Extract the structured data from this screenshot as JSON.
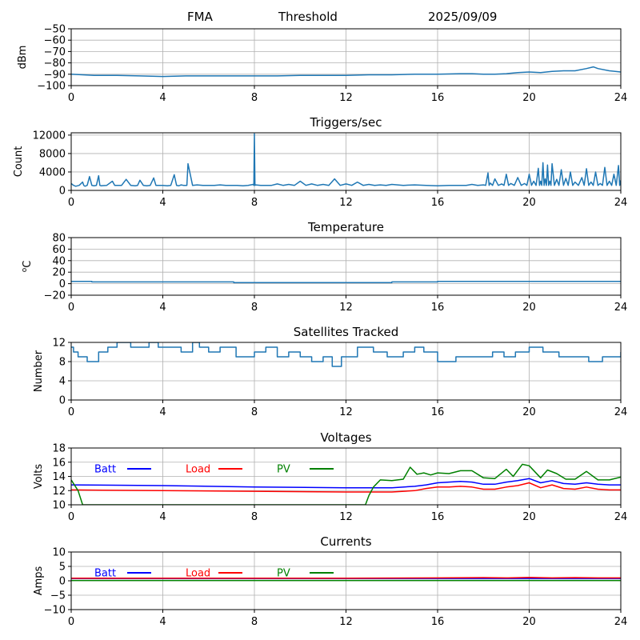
{
  "header": {
    "station": "FMA",
    "mode": "Threshold",
    "date": "2025/09/09"
  },
  "colors": {
    "series_default": "#1f77b4",
    "batt": "#0000ff",
    "load": "#ff0000",
    "pv": "#008000",
    "grid": "#b0b0b0"
  },
  "chart_data": [
    {
      "type": "line",
      "title": "",
      "xlabel": "",
      "ylabel": "dBm",
      "xlim": [
        0,
        24
      ],
      "ylim": [
        -100,
        -50
      ],
      "xticks": [
        0,
        4,
        8,
        12,
        16,
        20,
        24
      ],
      "yticks": [
        -100,
        -90,
        -80,
        -70,
        -60,
        -50
      ],
      "ytick_labels": [
        "−100",
        "−90",
        "−80",
        "−70",
        "−60",
        "−50"
      ],
      "grid": true,
      "series": [
        {
          "color": "#1f77b4",
          "x": [
            0,
            0.5,
            1,
            1.5,
            2,
            3,
            4,
            5,
            6,
            7,
            8,
            9,
            10,
            11,
            12,
            13,
            14,
            15,
            16,
            17,
            17.5,
            18,
            18.5,
            19,
            19.5,
            20,
            20.5,
            21,
            21.5,
            22,
            22.5,
            22.8,
            23,
            23.5,
            24
          ],
          "y": [
            -90,
            -90.5,
            -91,
            -91,
            -91,
            -91.5,
            -92,
            -91.5,
            -91.5,
            -91.5,
            -91.5,
            -91.5,
            -91,
            -91,
            -91,
            -90.5,
            -90.5,
            -90,
            -90,
            -89.5,
            -89.5,
            -90,
            -90,
            -89.5,
            -88.5,
            -88,
            -88.5,
            -87.5,
            -87,
            -87,
            -85,
            -83.5,
            -85,
            -87,
            -88
          ]
        }
      ]
    },
    {
      "type": "line",
      "title": "Triggers/sec",
      "xlabel": "",
      "ylabel": "Count",
      "xlim": [
        0,
        24
      ],
      "ylim": [
        0,
        12500
      ],
      "xticks": [
        0,
        4,
        8,
        12,
        16,
        20,
        24
      ],
      "yticks": [
        0,
        4000,
        8000,
        12000
      ],
      "ytick_labels": [
        "0",
        "4000",
        "8000",
        "12000"
      ],
      "grid": true,
      "series": [
        {
          "color": "#1f77b4",
          "baseline": 1100,
          "x": [
            0,
            0.2,
            0.5,
            0.6,
            0.8,
            1.0,
            1.2,
            1.3,
            1.8,
            2.0,
            2.4,
            2.8,
            3.0,
            3.3,
            3.6,
            3.8,
            4.2,
            4.5,
            4.7,
            4.8,
            5.0,
            5.1,
            5.5,
            6.0,
            6.5,
            7.0,
            7.5,
            7.95,
            8.0,
            8.05,
            8.5,
            9.0,
            9.5,
            10.0,
            10.5,
            11.0,
            11.5,
            12.0,
            12.5,
            13.0,
            13.5,
            14.0,
            15.0,
            16.0,
            17.0,
            17.5,
            18.0,
            18.2,
            18.3,
            18.5,
            18.8,
            19.0,
            19.2,
            19.5,
            19.8,
            20.0,
            20.2,
            20.4,
            20.5,
            20.6,
            20.7,
            20.8,
            20.9,
            21.0,
            21.2,
            21.4,
            21.6,
            21.8,
            22.0,
            22.3,
            22.5,
            22.7,
            22.9,
            23.1,
            23.3,
            23.5,
            23.7,
            23.9,
            24.0
          ],
          "y": [
            1500,
            900,
            1800,
            900,
            3000,
            1000,
            3200,
            1000,
            2000,
            1100,
            2400,
            1000,
            2200,
            1000,
            2700,
            1100,
            1000,
            3400,
            1000,
            1200,
            1100,
            5800,
            1200,
            1100,
            1200,
            1100,
            1000,
            1300,
            12300,
            1200,
            1100,
            1400,
            1300,
            2000,
            1400,
            1300,
            2500,
            1400,
            1800,
            1300,
            1200,
            1300,
            1200,
            1000,
            1100,
            1300,
            1200,
            3800,
            1600,
            2500,
            1400,
            3500,
            1500,
            2800,
            1500,
            3500,
            2000,
            4800,
            2000,
            6000,
            2500,
            5500,
            2000,
            5800,
            2400,
            4500,
            2600,
            4000,
            1800,
            2800,
            4700,
            1800,
            4000,
            1500,
            5000,
            2000,
            3500,
            5400,
            2200
          ]
        }
      ]
    },
    {
      "type": "line",
      "title": "Temperature",
      "xlabel": "",
      "ylabel": "oC",
      "xlim": [
        0,
        24
      ],
      "ylim": [
        -20,
        80
      ],
      "xticks": [
        0,
        4,
        8,
        12,
        16,
        20,
        24
      ],
      "yticks": [
        -20,
        0,
        20,
        40,
        60,
        80
      ],
      "ytick_labels": [
        "−20",
        "0",
        "20",
        "40",
        "60",
        "80"
      ],
      "grid": true,
      "series": [
        {
          "color": "#1f77b4",
          "x": [
            0,
            0.9,
            0.9,
            7.1,
            7.1,
            14,
            14,
            16,
            16,
            24
          ],
          "y": [
            4,
            4,
            3,
            3,
            2,
            2,
            3,
            3,
            4,
            4
          ]
        }
      ]
    },
    {
      "type": "line",
      "title": "Satellites Tracked",
      "xlabel": "",
      "ylabel": "Number",
      "xlim": [
        0,
        24
      ],
      "ylim": [
        0,
        12
      ],
      "xticks": [
        0,
        4,
        8,
        12,
        16,
        20,
        24
      ],
      "yticks": [
        0,
        4,
        8,
        12
      ],
      "ytick_labels": [
        "0",
        "4",
        "8",
        "12"
      ],
      "grid": true,
      "step": true,
      "series": [
        {
          "color": "#1f77b4",
          "x": [
            0,
            0.1,
            0.3,
            0.7,
            1.2,
            1.6,
            2.0,
            2.6,
            3.4,
            3.8,
            4.2,
            4.8,
            5.3,
            5.6,
            6.0,
            6.5,
            7.2,
            8.0,
            8.5,
            9.0,
            9.5,
            10.0,
            10.5,
            11.0,
            11.4,
            11.8,
            12.5,
            13.2,
            13.8,
            14.5,
            15.0,
            15.4,
            16.0,
            16.8,
            17.8,
            18.4,
            18.9,
            19.4,
            20.0,
            20.6,
            21.3,
            22.1,
            22.6,
            23.2,
            23.9,
            24.0
          ],
          "y": [
            11,
            10,
            9,
            8,
            10,
            11,
            12,
            11,
            12,
            11,
            11,
            10,
            12,
            11,
            10,
            11,
            9,
            10,
            11,
            9,
            10,
            9,
            8,
            9,
            7,
            9,
            11,
            10,
            9,
            10,
            11,
            10,
            8,
            9,
            9,
            10,
            9,
            10,
            11,
            10,
            9,
            9,
            8,
            9,
            9,
            10
          ]
        }
      ]
    },
    {
      "type": "line",
      "title": "Voltages",
      "xlabel": "",
      "ylabel": "Volts",
      "xlim": [
        0,
        24
      ],
      "ylim": [
        10,
        18
      ],
      "xticks": [
        0,
        4,
        8,
        12,
        16,
        20,
        24
      ],
      "yticks": [
        10,
        12,
        14,
        16,
        18
      ],
      "ytick_labels": [
        "10",
        "12",
        "14",
        "16",
        "18"
      ],
      "grid": true,
      "legend": "top-left",
      "series": [
        {
          "name": "Batt",
          "color": "#0000ff",
          "x": [
            0,
            4,
            8,
            12,
            14,
            15,
            15.5,
            16,
            16.5,
            17,
            17.5,
            18,
            18.5,
            19,
            19.5,
            20,
            20.5,
            21,
            21.5,
            22,
            22.5,
            23,
            23.5,
            24
          ],
          "y": [
            12.8,
            12.7,
            12.5,
            12.4,
            12.4,
            12.6,
            12.8,
            13.1,
            13.2,
            13.3,
            13.2,
            12.9,
            12.9,
            13.2,
            13.4,
            13.7,
            13.1,
            13.4,
            13.0,
            12.9,
            13.1,
            12.9,
            12.8,
            12.8
          ]
        },
        {
          "name": "Load",
          "color": "#ff0000",
          "x": [
            0,
            4,
            8,
            12,
            14,
            15,
            15.5,
            16,
            16.5,
            17,
            17.5,
            18,
            18.5,
            19,
            19.5,
            20,
            20.5,
            21,
            21.5,
            22,
            22.5,
            23,
            23.5,
            24
          ],
          "y": [
            12.1,
            12.0,
            11.9,
            11.8,
            11.8,
            12.0,
            12.3,
            12.5,
            12.5,
            12.6,
            12.5,
            12.2,
            12.2,
            12.5,
            12.7,
            13.1,
            12.4,
            12.8,
            12.3,
            12.2,
            12.5,
            12.2,
            12.1,
            12.1
          ]
        },
        {
          "name": "PV",
          "color": "#008000",
          "x": [
            0,
            0.3,
            0.5,
            12.85,
            13.0,
            13.2,
            13.5,
            14.0,
            14.5,
            14.8,
            15.1,
            15.4,
            15.7,
            16.0,
            16.5,
            17.0,
            17.5,
            18.0,
            18.5,
            19.0,
            19.3,
            19.7,
            20.0,
            20.5,
            20.8,
            21.2,
            21.6,
            22.0,
            22.5,
            23.0,
            23.5,
            24
          ],
          "y": [
            13.5,
            12.0,
            10.0,
            10.0,
            11.3,
            12.5,
            13.5,
            13.4,
            13.6,
            15.3,
            14.3,
            14.5,
            14.2,
            14.5,
            14.4,
            14.8,
            14.8,
            13.8,
            13.7,
            15.0,
            14.0,
            15.7,
            15.5,
            13.8,
            14.9,
            14.4,
            13.6,
            13.6,
            14.7,
            13.5,
            13.5,
            13.9
          ]
        }
      ]
    },
    {
      "type": "line",
      "title": "Currents",
      "xlabel": "",
      "ylabel": "Amps",
      "xlim": [
        0,
        24
      ],
      "ylim": [
        -10,
        10
      ],
      "xticks": [
        0,
        4,
        8,
        12,
        16,
        20,
        24
      ],
      "yticks": [
        -10,
        -5,
        0,
        5,
        10
      ],
      "ytick_labels": [
        "−10",
        "−5",
        "0",
        "5",
        "10"
      ],
      "grid": true,
      "legend": "top-left",
      "series": [
        {
          "name": "Batt",
          "color": "#0000ff",
          "x": [
            0,
            24
          ],
          "y": [
            0.8,
            0.8
          ]
        },
        {
          "name": "Load",
          "color": "#ff0000",
          "x": [
            0,
            4,
            8,
            12,
            16,
            18,
            19,
            20,
            21,
            22,
            23,
            24
          ],
          "y": [
            0.9,
            0.9,
            0.9,
            0.9,
            1.0,
            1.1,
            1.0,
            1.2,
            1.0,
            1.1,
            1.0,
            1.0
          ]
        },
        {
          "name": "PV",
          "color": "#008000",
          "x": [
            0,
            24
          ],
          "y": [
            0.1,
            0.1
          ]
        }
      ]
    }
  ]
}
